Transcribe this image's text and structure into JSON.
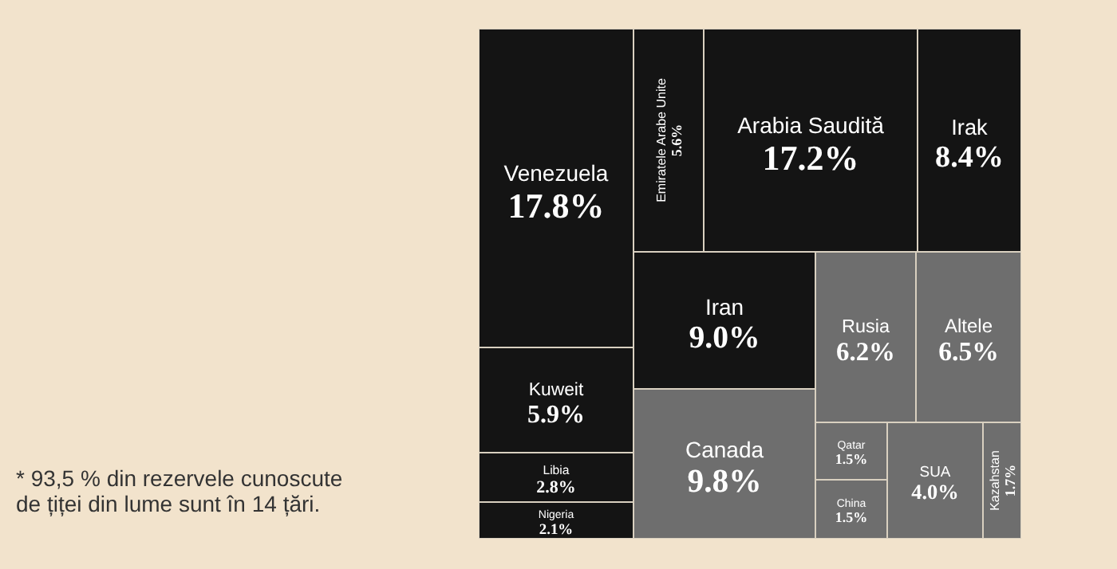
{
  "chart_data": {
    "type": "other",
    "categories": [
      "Venezuela",
      "Kuweit",
      "Libia",
      "Nigeria",
      "Emiratele Arabe Unite",
      "Arabia Saudită",
      "Irak",
      "Iran",
      "Canada",
      "Rusia",
      "Altele",
      "Qatar",
      "China",
      "SUA",
      "Kazahstan"
    ],
    "values": [
      17.8,
      5.9,
      2.8,
      2.1,
      5.6,
      17.2,
      8.4,
      9.0,
      9.8,
      6.2,
      6.5,
      1.5,
      1.5,
      4.0,
      1.7
    ],
    "value_labels": [
      "17.8%",
      "5.9%",
      "2.8%",
      "2.1%",
      "5.6%",
      "17.2%",
      "8.4%",
      "9.0%",
      "9.8%",
      "6.2%",
      "6.5%",
      "1.5%",
      "1.5%",
      "4.0%",
      "1.7%"
    ],
    "colors": [
      "#141414",
      "#141414",
      "#141414",
      "#141414",
      "#141414",
      "#141414",
      "#141414",
      "#141414",
      "#6e6e6e",
      "#6e6e6e",
      "#6e6e6e",
      "#6e6e6e",
      "#6e6e6e",
      "#6e6e6e",
      "#6e6e6e"
    ],
    "annotations": [
      "* 93,5 % din rezervele cunoscute de țiței din lume sunt în 14 țări."
    ]
  }
}
